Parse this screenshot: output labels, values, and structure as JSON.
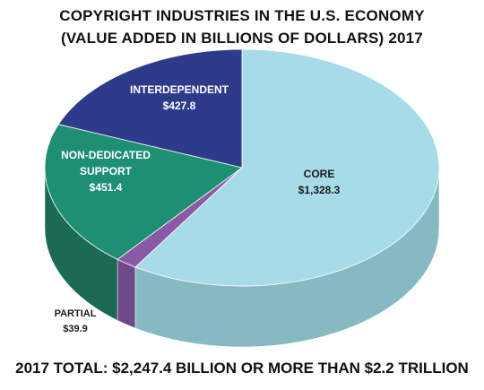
{
  "chart_data": {
    "type": "pie",
    "title": "COPYRIGHT INDUSTRIES IN THE U.S. ECONOMY",
    "subtitle": "(VALUE ADDED IN BILLIONS OF DOLLARS) 2017",
    "footer": "2017 TOTAL: $2,247.4 BILLION OR MORE THAN $2.2 TRILLION",
    "slices": [
      {
        "label": "CORE",
        "value_label": "$1,328.3",
        "value": 1328.3,
        "color": "#a8dbe8",
        "side_color": "#86b9c2"
      },
      {
        "label": "PARTIAL",
        "value_label": "$39.9",
        "value": 39.9,
        "color": "#8a5aa6",
        "side_color": "#6f4a8a"
      },
      {
        "label": "NON-DEDICATED SUPPORT",
        "value_label": "$451.4",
        "value": 451.4,
        "color": "#1f8f72",
        "side_color": "#1b6a56"
      },
      {
        "label": "INTERDEPENDENT",
        "value_label": "$427.8",
        "value": 427.8,
        "color": "#2e3a8a",
        "side_color": "#232c6a"
      }
    ]
  }
}
